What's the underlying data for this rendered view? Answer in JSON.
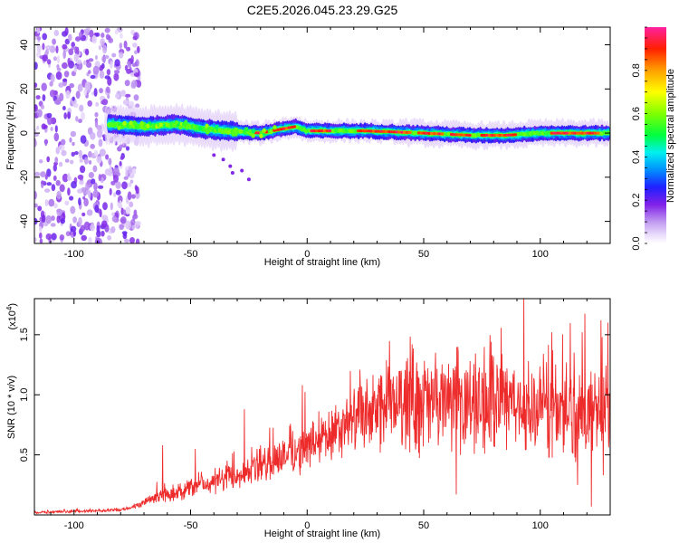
{
  "title": "C2E5.2026.045.23.29.G25",
  "chart_data": [
    {
      "type": "heatmap",
      "name": "spectrogram",
      "xlabel": "Height of straight line (km)",
      "ylabel": "Frequency (Hz)",
      "xlim": [
        -117,
        130
      ],
      "ylim": [
        -50,
        48
      ],
      "xticks": [
        -100,
        -50,
        0,
        50,
        100
      ],
      "yticks": [
        40,
        20,
        0,
        -20,
        -40
      ],
      "colorbar": {
        "label": "Normalized spectral amplitude",
        "range": [
          0,
          1
        ],
        "ticks": [
          "0.0",
          "0.2",
          "0.4",
          "0.6",
          "0.8"
        ]
      },
      "noise_region_x": [
        -117,
        -78
      ],
      "signal_center_hz": [
        [
          -85,
          4
        ],
        [
          -70,
          3
        ],
        [
          -55,
          4
        ],
        [
          -45,
          2
        ],
        [
          -35,
          1
        ],
        [
          -20,
          0
        ],
        [
          -5,
          3
        ],
        [
          0,
          1
        ],
        [
          10,
          1
        ],
        [
          25,
          1
        ],
        [
          50,
          0
        ],
        [
          70,
          -1
        ],
        [
          85,
          -1
        ],
        [
          100,
          0
        ],
        [
          130,
          0
        ]
      ]
    },
    {
      "type": "line",
      "name": "snr",
      "xlabel": "Height of straight line (km)",
      "ylabel": "SNR (10 * v/v)",
      "exponent_label": "(x10",
      "exponent_sup": "4",
      "exponent_close": ")",
      "xlim": [
        -117,
        130
      ],
      "ylim": [
        0,
        1.8
      ],
      "xticks": [
        -100,
        -50,
        0,
        50,
        100
      ],
      "yticks": [
        0.5,
        1.0,
        1.5
      ],
      "ytick_labels": [
        "0.5",
        "1.0",
        "1.5"
      ],
      "color": "#ee2b2b",
      "trend": [
        [
          -117,
          0.02
        ],
        [
          -80,
          0.04
        ],
        [
          -72,
          0.08
        ],
        [
          -65,
          0.15
        ],
        [
          -50,
          0.22
        ],
        [
          -35,
          0.3
        ],
        [
          -20,
          0.4
        ],
        [
          -10,
          0.5
        ],
        [
          0,
          0.55
        ],
        [
          10,
          0.65
        ],
        [
          20,
          0.77
        ],
        [
          30,
          0.87
        ],
        [
          40,
          0.92
        ],
        [
          50,
          0.94
        ],
        [
          70,
          0.93
        ],
        [
          90,
          0.9
        ],
        [
          110,
          0.86
        ],
        [
          130,
          0.84
        ]
      ],
      "spikes": [
        [
          -62,
          0.58
        ],
        [
          -48,
          0.55
        ],
        [
          -27,
          0.88
        ],
        [
          -20,
          0.58
        ],
        [
          -2,
          1.08
        ],
        [
          25,
          0.92
        ],
        [
          37,
          1.15
        ],
        [
          48,
          1.14
        ],
        [
          55,
          1.35
        ],
        [
          64,
          0.17
        ],
        [
          80,
          1.32
        ],
        [
          95,
          1.28
        ],
        [
          105,
          1.52
        ],
        [
          118,
          1.52
        ],
        [
          126,
          1.62
        ],
        [
          129,
          1.6
        ],
        [
          122,
          0.07
        ],
        [
          116,
          0.25
        ],
        [
          127,
          0.33
        ]
      ]
    }
  ]
}
